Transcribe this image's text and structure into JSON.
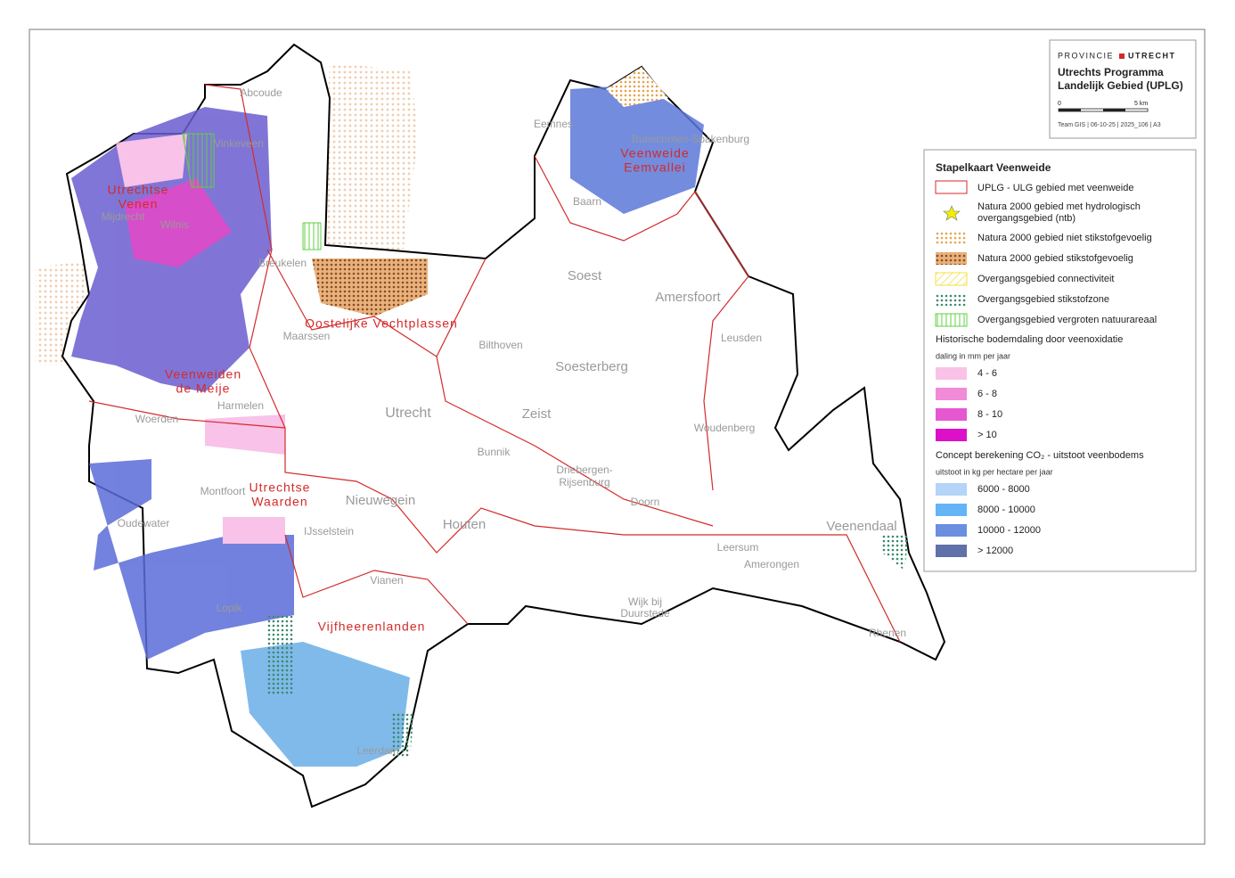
{
  "title_block": {
    "org_left": "PROVINCIE",
    "org_right": "UTRECHT",
    "title": "Utrechts Programma",
    "title_line2": "Landelijk Gebied (UPLG)",
    "scale_start": "0",
    "scale_end": "5 km",
    "footer": "Team GIS | 06-10-25 | 2025_106 | A3"
  },
  "legend": {
    "title": "Stapelkaart Veenweide",
    "items": [
      {
        "label": "UPLG - ULG gebied met veenweide"
      },
      {
        "label": "Natura 2000 gebied met hydrologisch",
        "label2": "overgangsgebied (ntb)"
      },
      {
        "label": "Natura 2000 gebied niet stikstofgevoelig"
      },
      {
        "label": "Natura 2000 gebied stikstofgevoelig"
      },
      {
        "label": "Overgangsgebied connectiviteit"
      },
      {
        "label": "Overgangsgebied stikstofzone"
      },
      {
        "label": "Overgangsgebied vergroten natuurareaal"
      }
    ],
    "subsidence": {
      "title": "Historische bodemdaling door veenoxidatie",
      "unit": "daling in mm per jaar",
      "classes": [
        "4 - 6",
        "6 - 8",
        "8 - 10",
        "> 10"
      ]
    },
    "emission": {
      "title": "Concept berekening CO₂ - uitstoot veenbodems",
      "unit": "uitstoot in kg per hectare per jaar",
      "classes": [
        "6000 - 8000",
        "8000 - 10000",
        "10000 - 12000",
        "> 12000"
      ]
    }
  },
  "regions": [
    "Utrechtse",
    "Venen",
    "Veenweiden",
    "de Meije",
    "Oostelijke Vechtplassen",
    "Veenweide",
    "Eemvallei",
    "Utrechtse",
    "Waarden",
    "Vijfheerenlanden"
  ],
  "places": [
    "Abcoude",
    "Vinkeveen",
    "Mijdrecht",
    "Wilnis",
    "Breukelen",
    "Maarssen",
    "Eemnes",
    "Bunschoten-Spakenburg",
    "Baarn",
    "Soest",
    "Amersfoort",
    "Leusden",
    "Bilthoven",
    "Soesterberg",
    "Utrecht",
    "Zeist",
    "Woudenberg",
    "Harmelen",
    "Woerden",
    "Bunnik",
    "Driebergen-",
    "Rijsenburg",
    "Montfoort",
    "Nieuwegein",
    "Oudewater",
    "IJsselstein",
    "Houten",
    "Doorn",
    "Veenendaal",
    "Leersum",
    "Amerongen",
    "Vianen",
    "Wijk bij",
    "Duurstede",
    "Lopik",
    "Rhenen",
    "Leerdam"
  ]
}
